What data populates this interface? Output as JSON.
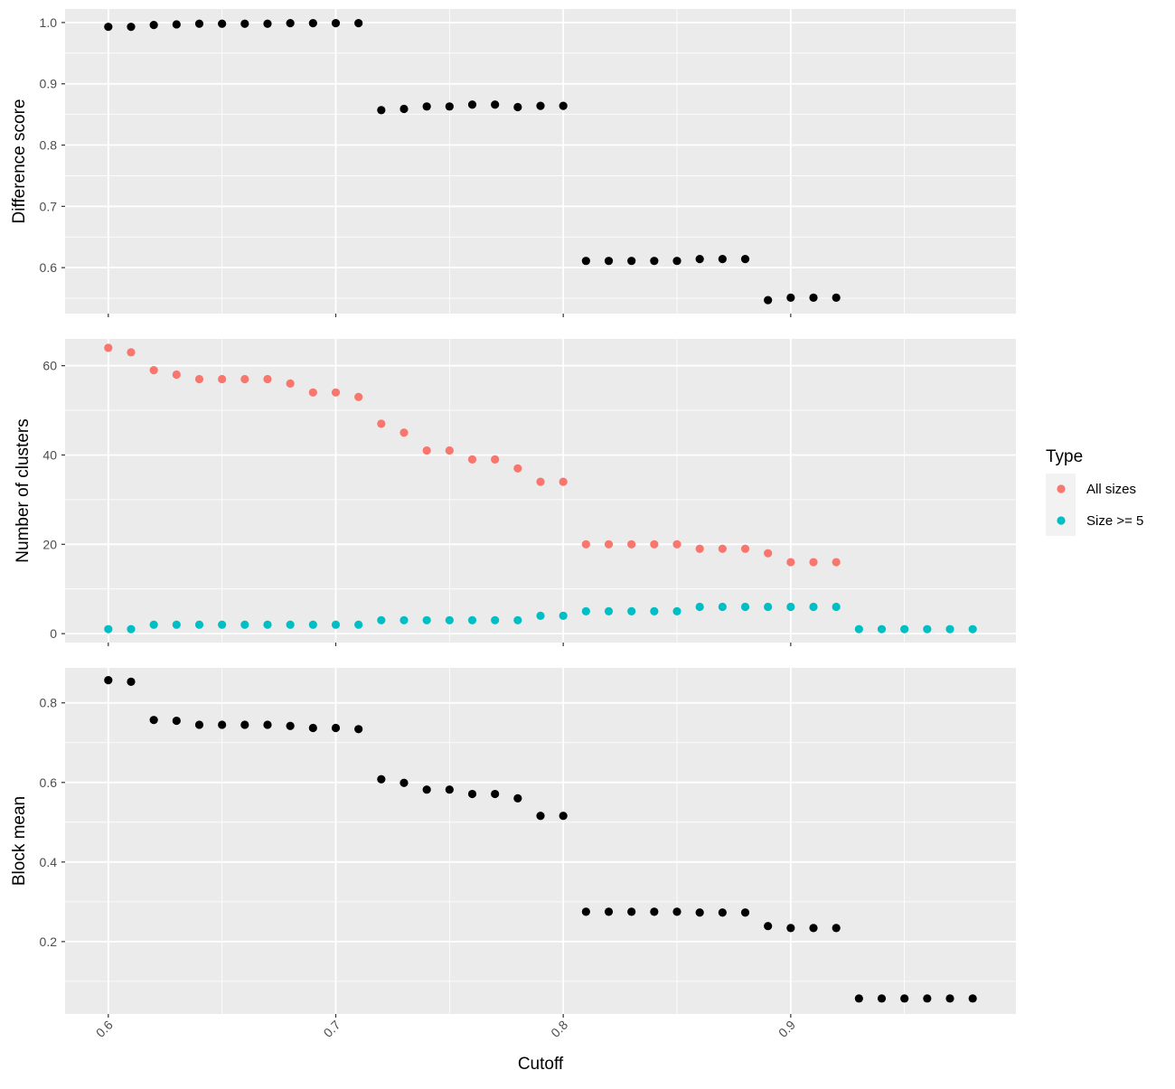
{
  "chart_data": {
    "type": "scatter",
    "layout": "faceted vertical panels sharing x axis",
    "xlabel": "Cutoff",
    "xlim": [
      0.581,
      0.999
    ],
    "x_ticks": [
      "0.6",
      "0.7",
      "0.8",
      "0.9"
    ],
    "x_tick_values": [
      0.6,
      0.7,
      0.8,
      0.9
    ],
    "x_tick_rotation": -45,
    "grid": true,
    "background": "#EBEBEB",
    "gridline_color": "#FFFFFF",
    "legend": {
      "title": "Type",
      "position": "right",
      "entries": [
        {
          "label": "All sizes",
          "color": "#F8766D"
        },
        {
          "label": "Size >= 5",
          "color": "#00BFC4"
        }
      ]
    },
    "panels": [
      {
        "ylabel": "Difference score",
        "ylim": [
          0.525,
          1.022
        ],
        "y_ticks": [
          "0.6",
          "0.7",
          "0.8",
          "0.9",
          "1.0"
        ],
        "y_tick_values": [
          0.6,
          0.7,
          0.8,
          0.9,
          1.0
        ],
        "series": [
          {
            "color": "#000000",
            "x": [
              0.6,
              0.61,
              0.62,
              0.63,
              0.64,
              0.65,
              0.66,
              0.67,
              0.68,
              0.69,
              0.7,
              0.71,
              0.72,
              0.73,
              0.74,
              0.75,
              0.76,
              0.77,
              0.78,
              0.79,
              0.8,
              0.81,
              0.82,
              0.83,
              0.84,
              0.85,
              0.86,
              0.87,
              0.88,
              0.89,
              0.9,
              0.91,
              0.92
            ],
            "y": [
              0.993,
              0.993,
              0.996,
              0.997,
              0.998,
              0.998,
              0.998,
              0.998,
              0.999,
              0.999,
              0.999,
              0.999,
              0.857,
              0.859,
              0.863,
              0.863,
              0.866,
              0.866,
              0.862,
              0.864,
              0.864,
              0.611,
              0.611,
              0.611,
              0.611,
              0.611,
              0.614,
              0.614,
              0.614,
              0.547,
              0.551,
              0.551,
              0.551
            ]
          }
        ]
      },
      {
        "ylabel": "Number of clusters",
        "ylim": [
          -2,
          66
        ],
        "y_ticks": [
          "0",
          "20",
          "40",
          "60"
        ],
        "y_tick_values": [
          0,
          20,
          40,
          60
        ],
        "series": [
          {
            "name": "All sizes",
            "color": "#F8766D",
            "x": [
              0.6,
              0.61,
              0.62,
              0.63,
              0.64,
              0.65,
              0.66,
              0.67,
              0.68,
              0.69,
              0.7,
              0.71,
              0.72,
              0.73,
              0.74,
              0.75,
              0.76,
              0.77,
              0.78,
              0.79,
              0.8,
              0.81,
              0.82,
              0.83,
              0.84,
              0.85,
              0.86,
              0.87,
              0.88,
              0.89,
              0.9,
              0.91,
              0.92
            ],
            "y": [
              64,
              63,
              59,
              58,
              57,
              57,
              57,
              57,
              56,
              54,
              54,
              53,
              47,
              45,
              41,
              41,
              39,
              39,
              37,
              34,
              34,
              20,
              20,
              20,
              20,
              20,
              19,
              19,
              19,
              18,
              16,
              16,
              16
            ]
          },
          {
            "name": "Size >= 5",
            "color": "#00BFC4",
            "x": [
              0.6,
              0.61,
              0.62,
              0.63,
              0.64,
              0.65,
              0.66,
              0.67,
              0.68,
              0.69,
              0.7,
              0.71,
              0.72,
              0.73,
              0.74,
              0.75,
              0.76,
              0.77,
              0.78,
              0.79,
              0.8,
              0.81,
              0.82,
              0.83,
              0.84,
              0.85,
              0.86,
              0.87,
              0.88,
              0.89,
              0.9,
              0.91,
              0.92,
              0.93,
              0.94,
              0.95,
              0.96,
              0.97,
              0.98
            ],
            "y": [
              1,
              1,
              2,
              2,
              2,
              2,
              2,
              2,
              2,
              2,
              2,
              2,
              3,
              3,
              3,
              3,
              3,
              3,
              3,
              4,
              4,
              5,
              5,
              5,
              5,
              5,
              6,
              6,
              6,
              6,
              6,
              6,
              6,
              1,
              1,
              1,
              1,
              1,
              1
            ]
          }
        ]
      },
      {
        "ylabel": "Block mean",
        "ylim": [
          0.018,
          0.888
        ],
        "y_ticks": [
          "0.2",
          "0.4",
          "0.6",
          "0.8"
        ],
        "y_tick_values": [
          0.2,
          0.4,
          0.6,
          0.8
        ],
        "series": [
          {
            "color": "#000000",
            "x": [
              0.6,
              0.61,
              0.62,
              0.63,
              0.64,
              0.65,
              0.66,
              0.67,
              0.68,
              0.69,
              0.7,
              0.71,
              0.72,
              0.73,
              0.74,
              0.75,
              0.76,
              0.77,
              0.78,
              0.79,
              0.8,
              0.81,
              0.82,
              0.83,
              0.84,
              0.85,
              0.86,
              0.87,
              0.88,
              0.89,
              0.9,
              0.91,
              0.92,
              0.93,
              0.94,
              0.95,
              0.96,
              0.97,
              0.98
            ],
            "y": [
              0.857,
              0.853,
              0.757,
              0.755,
              0.745,
              0.745,
              0.745,
              0.745,
              0.742,
              0.737,
              0.737,
              0.734,
              0.608,
              0.599,
              0.582,
              0.582,
              0.571,
              0.571,
              0.56,
              0.516,
              0.516,
              0.275,
              0.275,
              0.275,
              0.275,
              0.275,
              0.273,
              0.273,
              0.273,
              0.239,
              0.234,
              0.234,
              0.234,
              0.057,
              0.057,
              0.057,
              0.057,
              0.057,
              0.057
            ]
          }
        ]
      }
    ]
  }
}
